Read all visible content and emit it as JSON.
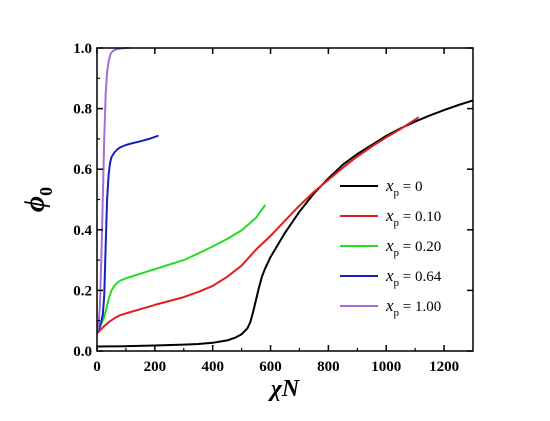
{
  "chart_data": {
    "type": "line",
    "xlabel": "χN",
    "ylabel": {
      "symbol": "ϕ",
      "subscript": "0"
    },
    "xlim": [
      0,
      1300
    ],
    "ylim": [
      0,
      1.0
    ],
    "x_ticks": [
      0,
      200,
      400,
      600,
      800,
      1000,
      1200
    ],
    "x_tick_labels": [
      "0",
      "200",
      "400",
      "600",
      "800",
      "1000",
      "1200"
    ],
    "y_ticks": [
      0,
      0.2,
      0.4,
      0.6,
      0.8,
      1.0
    ],
    "y_tick_labels": [
      "0.0",
      "0.2",
      "0.4",
      "0.6",
      "0.8",
      "1.0"
    ],
    "grid": false,
    "legend_position": "right",
    "series": [
      {
        "name": "x_p = 0",
        "legend": {
          "var": "x",
          "sub": "p",
          "rest": " = 0"
        },
        "color": "#000000",
        "x": [
          0,
          100,
          200,
          300,
          350,
          400,
          450,
          480,
          500,
          520,
          530,
          540,
          550,
          560,
          570,
          580,
          600,
          650,
          700,
          750,
          800,
          850,
          900,
          950,
          1000,
          1050,
          1100,
          1150,
          1200,
          1250,
          1300
        ],
        "y": [
          0.015,
          0.016,
          0.018,
          0.021,
          0.023,
          0.027,
          0.035,
          0.045,
          0.055,
          0.075,
          0.095,
          0.13,
          0.17,
          0.21,
          0.245,
          0.27,
          0.31,
          0.39,
          0.46,
          0.52,
          0.57,
          0.615,
          0.65,
          0.68,
          0.71,
          0.735,
          0.757,
          0.777,
          0.795,
          0.812,
          0.827
        ]
      },
      {
        "name": "x_p = 0.10",
        "legend": {
          "var": "x",
          "sub": "p",
          "rest": " = 0.10"
        },
        "color": "#e01e1e",
        "x": [
          0,
          10,
          20,
          40,
          60,
          80,
          100,
          150,
          200,
          250,
          300,
          350,
          400,
          450,
          500,
          550,
          600,
          650,
          700,
          750,
          800,
          850,
          900,
          950,
          1000,
          1050,
          1110
        ],
        "y": [
          0.058,
          0.068,
          0.078,
          0.095,
          0.108,
          0.118,
          0.124,
          0.138,
          0.152,
          0.165,
          0.178,
          0.195,
          0.215,
          0.245,
          0.282,
          0.335,
          0.38,
          0.43,
          0.48,
          0.525,
          0.565,
          0.605,
          0.642,
          0.675,
          0.705,
          0.733,
          0.77
        ]
      },
      {
        "name": "x_p = 0.20",
        "legend": {
          "var": "x",
          "sub": "p",
          "rest": " = 0.20"
        },
        "color": "#22dd22",
        "x": [
          0,
          5,
          10,
          20,
          30,
          40,
          50,
          60,
          70,
          80,
          100,
          150,
          200,
          250,
          300,
          350,
          400,
          450,
          500,
          550,
          580
        ],
        "y": [
          0.065,
          0.07,
          0.08,
          0.1,
          0.13,
          0.17,
          0.2,
          0.215,
          0.225,
          0.232,
          0.24,
          0.255,
          0.27,
          0.285,
          0.3,
          0.322,
          0.345,
          0.37,
          0.398,
          0.44,
          0.48
        ]
      },
      {
        "name": "x_p = 0.64",
        "legend": {
          "var": "x",
          "sub": "p",
          "rest": " = 0.64"
        },
        "color": "#1620c0",
        "x": [
          0,
          10,
          20,
          25,
          30,
          35,
          40,
          45,
          50,
          60,
          70,
          80,
          100,
          120,
          150,
          180,
          210
        ],
        "y": [
          0.06,
          0.08,
          0.12,
          0.18,
          0.35,
          0.5,
          0.58,
          0.62,
          0.64,
          0.655,
          0.665,
          0.672,
          0.68,
          0.685,
          0.692,
          0.7,
          0.71
        ]
      },
      {
        "name": "x_p = 1.00",
        "legend": {
          "var": "x",
          "sub": "p",
          "rest": " = 1.00"
        },
        "color": "#a070d8",
        "x": [
          0,
          5,
          10,
          15,
          20,
          25,
          30,
          35,
          40,
          45,
          50,
          55,
          60,
          70,
          80,
          90,
          100,
          110
        ],
        "y": [
          0.06,
          0.08,
          0.15,
          0.3,
          0.5,
          0.7,
          0.85,
          0.92,
          0.955,
          0.975,
          0.985,
          0.99,
          0.993,
          0.996,
          0.998,
          0.999,
          1.0,
          1.0
        ]
      }
    ]
  }
}
